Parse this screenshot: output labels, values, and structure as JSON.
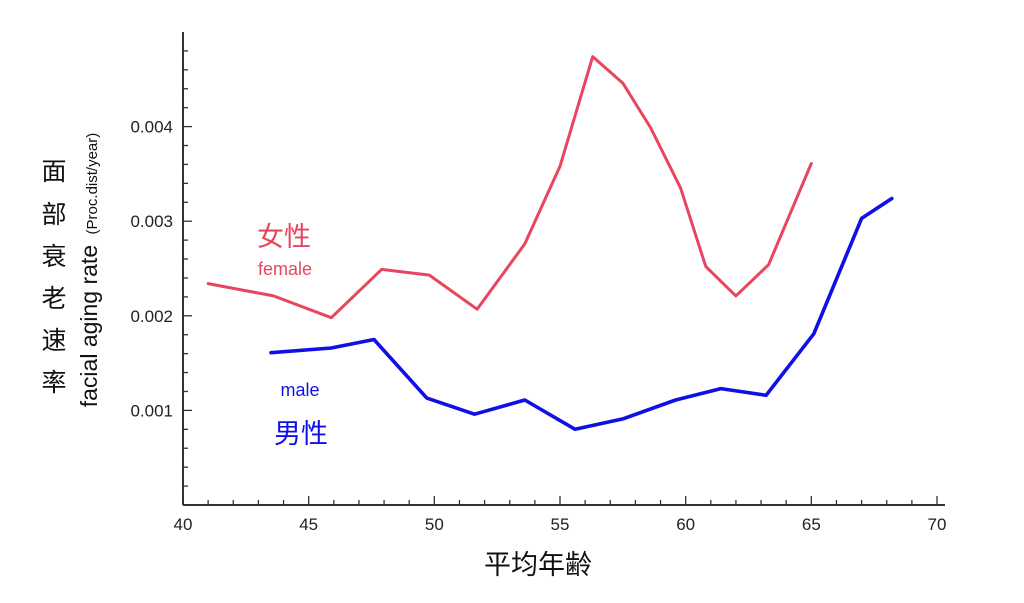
{
  "chart_data": {
    "type": "line",
    "xlabel": "平均年齢",
    "ylabel_cjk": [
      "面",
      "部",
      "衰",
      "老",
      "速",
      "率"
    ],
    "ylabel_en": "facial aging rate",
    "ylabel_unit": "(Proc.dist/year)",
    "xlim": [
      40,
      70
    ],
    "ylim": [
      0,
      0.005
    ],
    "x_ticks": [
      40,
      45,
      50,
      55,
      60,
      65,
      70
    ],
    "x_tick_labels": [
      "40",
      "45",
      "50",
      "55",
      "60",
      "65",
      "70"
    ],
    "y_ticks": [
      0.001,
      0.002,
      0.003,
      0.004
    ],
    "y_tick_labels": [
      "0.001",
      "0.002",
      "0.003",
      "0.004"
    ],
    "grid": false,
    "series": [
      {
        "name": "女性",
        "name_en": "female",
        "color": "#e8455f",
        "x": [
          41.0,
          43.6,
          45.9,
          47.9,
          49.8,
          51.7,
          53.6,
          55.0,
          56.3,
          57.5,
          58.6,
          59.8,
          60.8,
          62.0,
          63.3,
          65.0
        ],
        "y": [
          0.00234,
          0.00221,
          0.00198,
          0.00249,
          0.00243,
          0.00207,
          0.00276,
          0.00358,
          0.00474,
          0.00446,
          0.00399,
          0.00335,
          0.00252,
          0.00221,
          0.00254,
          0.00361
        ]
      },
      {
        "name": "男性",
        "name_en": "male",
        "color": "#1010e6",
        "x": [
          43.5,
          45.9,
          47.6,
          49.7,
          51.6,
          53.6,
          55.6,
          57.5,
          59.6,
          61.4,
          63.2,
          65.1,
          67.0,
          68.2
        ],
        "y": [
          0.00161,
          0.00166,
          0.00175,
          0.00113,
          0.00096,
          0.00111,
          0.0008,
          0.00091,
          0.00111,
          0.00123,
          0.00116,
          0.00181,
          0.00303,
          0.00324
        ]
      }
    ]
  }
}
